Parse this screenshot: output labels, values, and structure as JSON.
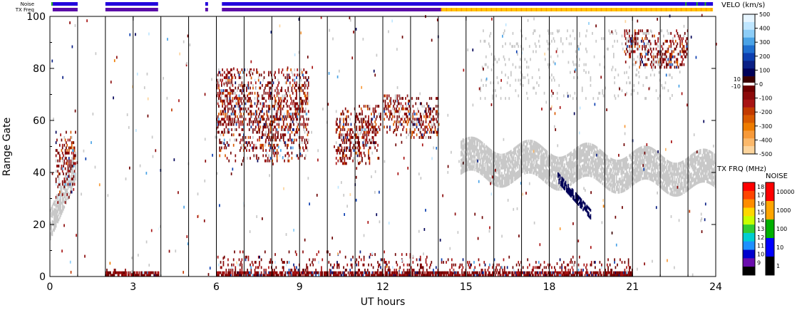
{
  "chart_data": {
    "type": "heatmap",
    "title": "",
    "xlabel": "UT hours",
    "ylabel": "Range Gate",
    "xlim": [
      0,
      24
    ],
    "ylim": [
      0,
      100
    ],
    "x_ticks": [
      "0",
      "3",
      "6",
      "9",
      "12",
      "15",
      "18",
      "21",
      "24"
    ],
    "y_ticks": [
      "0",
      "20",
      "40",
      "60",
      "80",
      "100"
    ],
    "hour_markers": [
      1,
      2,
      3,
      4,
      5,
      6,
      7,
      8,
      9,
      10,
      11,
      12,
      13,
      14,
      15,
      16,
      17,
      18,
      19,
      20,
      21,
      22,
      23
    ],
    "status_bars": {
      "noise_label": "Noise",
      "txfreq_label": "TX Freq",
      "active_intervals": [
        [
          0.1,
          1.0
        ],
        [
          2.0,
          3.9
        ],
        [
          5.6,
          5.7
        ],
        [
          6.2,
          23.9
        ]
      ],
      "txfreq_change_hour": 14.1
    },
    "velocity_colorbar": {
      "title": "VELO (km/s)",
      "ticks": [
        "500",
        "400",
        "300",
        "200",
        "100",
        "0",
        "-100",
        "-200",
        "-300",
        "-400",
        "-500"
      ],
      "ground_scatter_ticks": [
        "10",
        "-10"
      ],
      "colors": [
        "#e6f5ff",
        "#bfe6ff",
        "#8ccdf7",
        "#4aa3e6",
        "#1f6fcf",
        "#0d3fb0",
        "#0a1f85",
        "#000058",
        "#3d0000",
        "#6e0000",
        "#8c0a0a",
        "#a81414",
        "#c23a00",
        "#d95a00",
        "#ee7c00",
        "#f79a3a",
        "#fbb86a",
        "#fcd49c"
      ]
    },
    "txfreq_colorbar": {
      "title": "TX FRQ (MHz)",
      "ticks": [
        "18",
        "17",
        "16",
        "15",
        "14",
        "13",
        "12",
        "11",
        "10",
        "9"
      ],
      "colors": [
        "#ff0000",
        "#ff4500",
        "#ff8c00",
        "#ffd700",
        "#c8ff00",
        "#32cd32",
        "#00ced1",
        "#1e90ff",
        "#0000cd",
        "#6a0dad",
        "#000000"
      ]
    },
    "noise_colorbar": {
      "title": "NOISE",
      "ticks": [
        "10000",
        "1000",
        "100",
        "10",
        "1"
      ],
      "colors": [
        "#ff0000",
        "#ffa500",
        "#00b000",
        "#0000ff",
        "#000000"
      ]
    },
    "scatter_regions": [
      {
        "name": "ground-scatter",
        "hour_range": [
          0.0,
          0.9
        ],
        "gate_range": [
          20,
          56
        ],
        "trend": "rising"
      },
      {
        "name": "ground-scatter",
        "hour_range": [
          14.8,
          24.0
        ],
        "gate_range": [
          28,
          58
        ]
      },
      {
        "name": "ground-scatter",
        "hour_range": [
          15.5,
          22.5
        ],
        "gate_range": [
          68,
          95
        ]
      },
      {
        "name": "ionospheric-negative",
        "hour_range": [
          0.2,
          0.9
        ],
        "gate_range": [
          28,
          56
        ]
      },
      {
        "name": "ionospheric-negative",
        "hour_range": [
          6.0,
          9.3
        ],
        "gate_range": [
          44,
          80
        ]
      },
      {
        "name": "ionospheric-negative",
        "hour_range": [
          10.3,
          11.9
        ],
        "gate_range": [
          43,
          66
        ]
      },
      {
        "name": "ionospheric-negative",
        "hour_range": [
          12.0,
          14.0
        ],
        "gate_range": [
          53,
          70
        ]
      },
      {
        "name": "ionospheric-negative",
        "hour_range": [
          20.7,
          23.0
        ],
        "gate_range": [
          80,
          95
        ]
      },
      {
        "name": "near-range",
        "hour_range": [
          2.0,
          3.9
        ],
        "gate_range": [
          0,
          3
        ]
      },
      {
        "name": "near-range",
        "hour_range": [
          6.0,
          14.2
        ],
        "gate_range": [
          0,
          10
        ]
      },
      {
        "name": "near-range",
        "hour_range": [
          14.2,
          21.0
        ],
        "gate_range": [
          0,
          8
        ]
      }
    ]
  }
}
